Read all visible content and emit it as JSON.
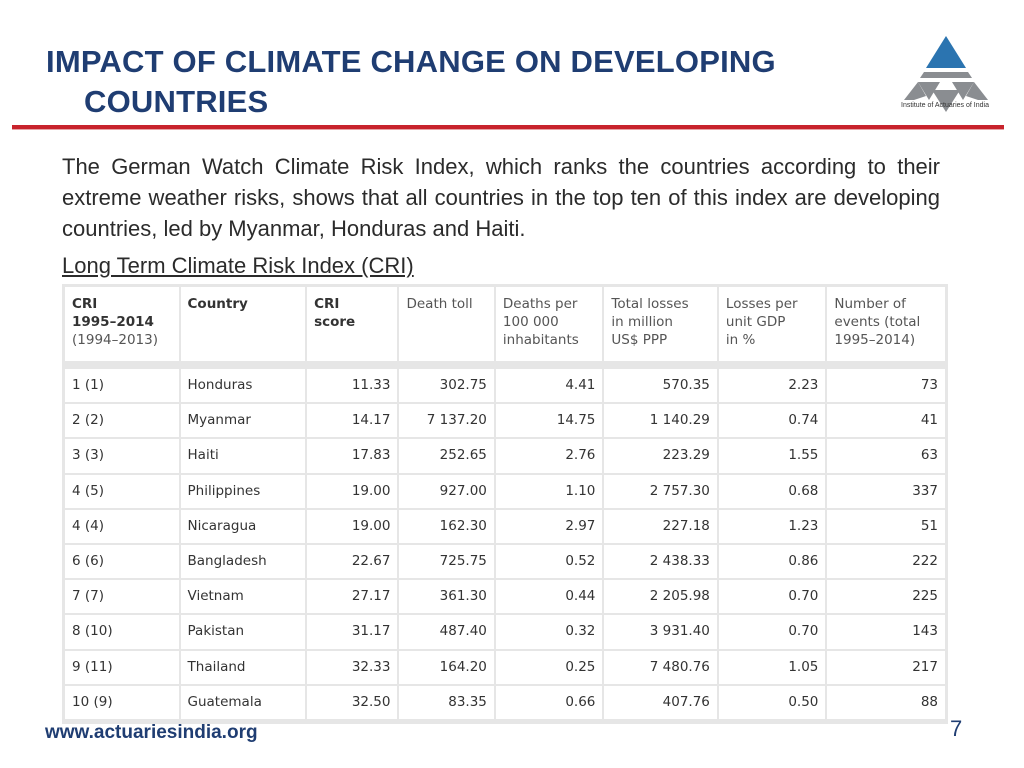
{
  "slide": {
    "title_line1": "IMPACT OF CLIMATE CHANGE ON DEVELOPING",
    "title_line2": "COUNTRIES",
    "logo_caption": "Institute of Actuaries of India",
    "intro": "The German Watch Climate Risk Index, which ranks the countries according to their extreme weather risks, shows that all countries in the top ten of this index are developing countries, led by Myanmar, Honduras and Haiti.",
    "subheading": "Long Term Climate Risk Index (CRI)",
    "footer_url": "www.actuariesindia.org",
    "page_number": "7",
    "colors": {
      "title": "#1f3d72",
      "rule": "#c8232c",
      "logo_blue": "#2b74b0",
      "logo_gray": "#8a8d91"
    }
  },
  "table": {
    "headers": {
      "rank_line1": "CRI",
      "rank_line2": "1995–2014",
      "rank_line3": "(1994–2013)",
      "country": "Country",
      "score_line1": "CRI",
      "score_line2": "score",
      "deaths": "Death toll",
      "deaths_per_line1": "Deaths per",
      "deaths_per_line2": "100 000",
      "deaths_per_line3": "inhabitants",
      "losses_line1": "Total losses",
      "losses_line2": "in million",
      "losses_line3": "US$ PPP",
      "losses_gdp_line1": "Losses per",
      "losses_gdp_line2": "unit GDP",
      "losses_gdp_line3": "in %",
      "events_line1": "Number of",
      "events_line2": "events (total",
      "events_line3": "1995–2014)"
    },
    "rows": [
      {
        "rank": "1 (1)",
        "country": "Honduras",
        "score": "11.33",
        "deaths": "302.75",
        "deaths_per": "4.41",
        "losses": "570.35",
        "losses_gdp": "2.23",
        "events": "73"
      },
      {
        "rank": "2 (2)",
        "country": "Myanmar",
        "score": "14.17",
        "deaths": "7 137.20",
        "deaths_per": "14.75",
        "losses": "1 140.29",
        "losses_gdp": "0.74",
        "events": "41"
      },
      {
        "rank": "3 (3)",
        "country": "Haiti",
        "score": "17.83",
        "deaths": "252.65",
        "deaths_per": "2.76",
        "losses": "223.29",
        "losses_gdp": "1.55",
        "events": "63"
      },
      {
        "rank": "4 (5)",
        "country": "Philippines",
        "score": "19.00",
        "deaths": "927.00",
        "deaths_per": "1.10",
        "losses": "2 757.30",
        "losses_gdp": "0.68",
        "events": "337"
      },
      {
        "rank": "4 (4)",
        "country": "Nicaragua",
        "score": "19.00",
        "deaths": "162.30",
        "deaths_per": "2.97",
        "losses": "227.18",
        "losses_gdp": "1.23",
        "events": "51"
      },
      {
        "rank": "6 (6)",
        "country": "Bangladesh",
        "score": "22.67",
        "deaths": "725.75",
        "deaths_per": "0.52",
        "losses": "2 438.33",
        "losses_gdp": "0.86",
        "events": "222"
      },
      {
        "rank": "7 (7)",
        "country": "Vietnam",
        "score": "27.17",
        "deaths": "361.30",
        "deaths_per": "0.44",
        "losses": "2 205.98",
        "losses_gdp": "0.70",
        "events": "225"
      },
      {
        "rank": "8 (10)",
        "country": "Pakistan",
        "score": "31.17",
        "deaths": "487.40",
        "deaths_per": "0.32",
        "losses": "3 931.40",
        "losses_gdp": "0.70",
        "events": "143"
      },
      {
        "rank": "9 (11)",
        "country": "Thailand",
        "score": "32.33",
        "deaths": "164.20",
        "deaths_per": "0.25",
        "losses": "7 480.76",
        "losses_gdp": "1.05",
        "events": "217"
      },
      {
        "rank": "10 (9)",
        "country": "Guatemala",
        "score": "32.50",
        "deaths": "83.35",
        "deaths_per": "0.66",
        "losses": "407.76",
        "losses_gdp": "0.50",
        "events": "88"
      }
    ]
  }
}
